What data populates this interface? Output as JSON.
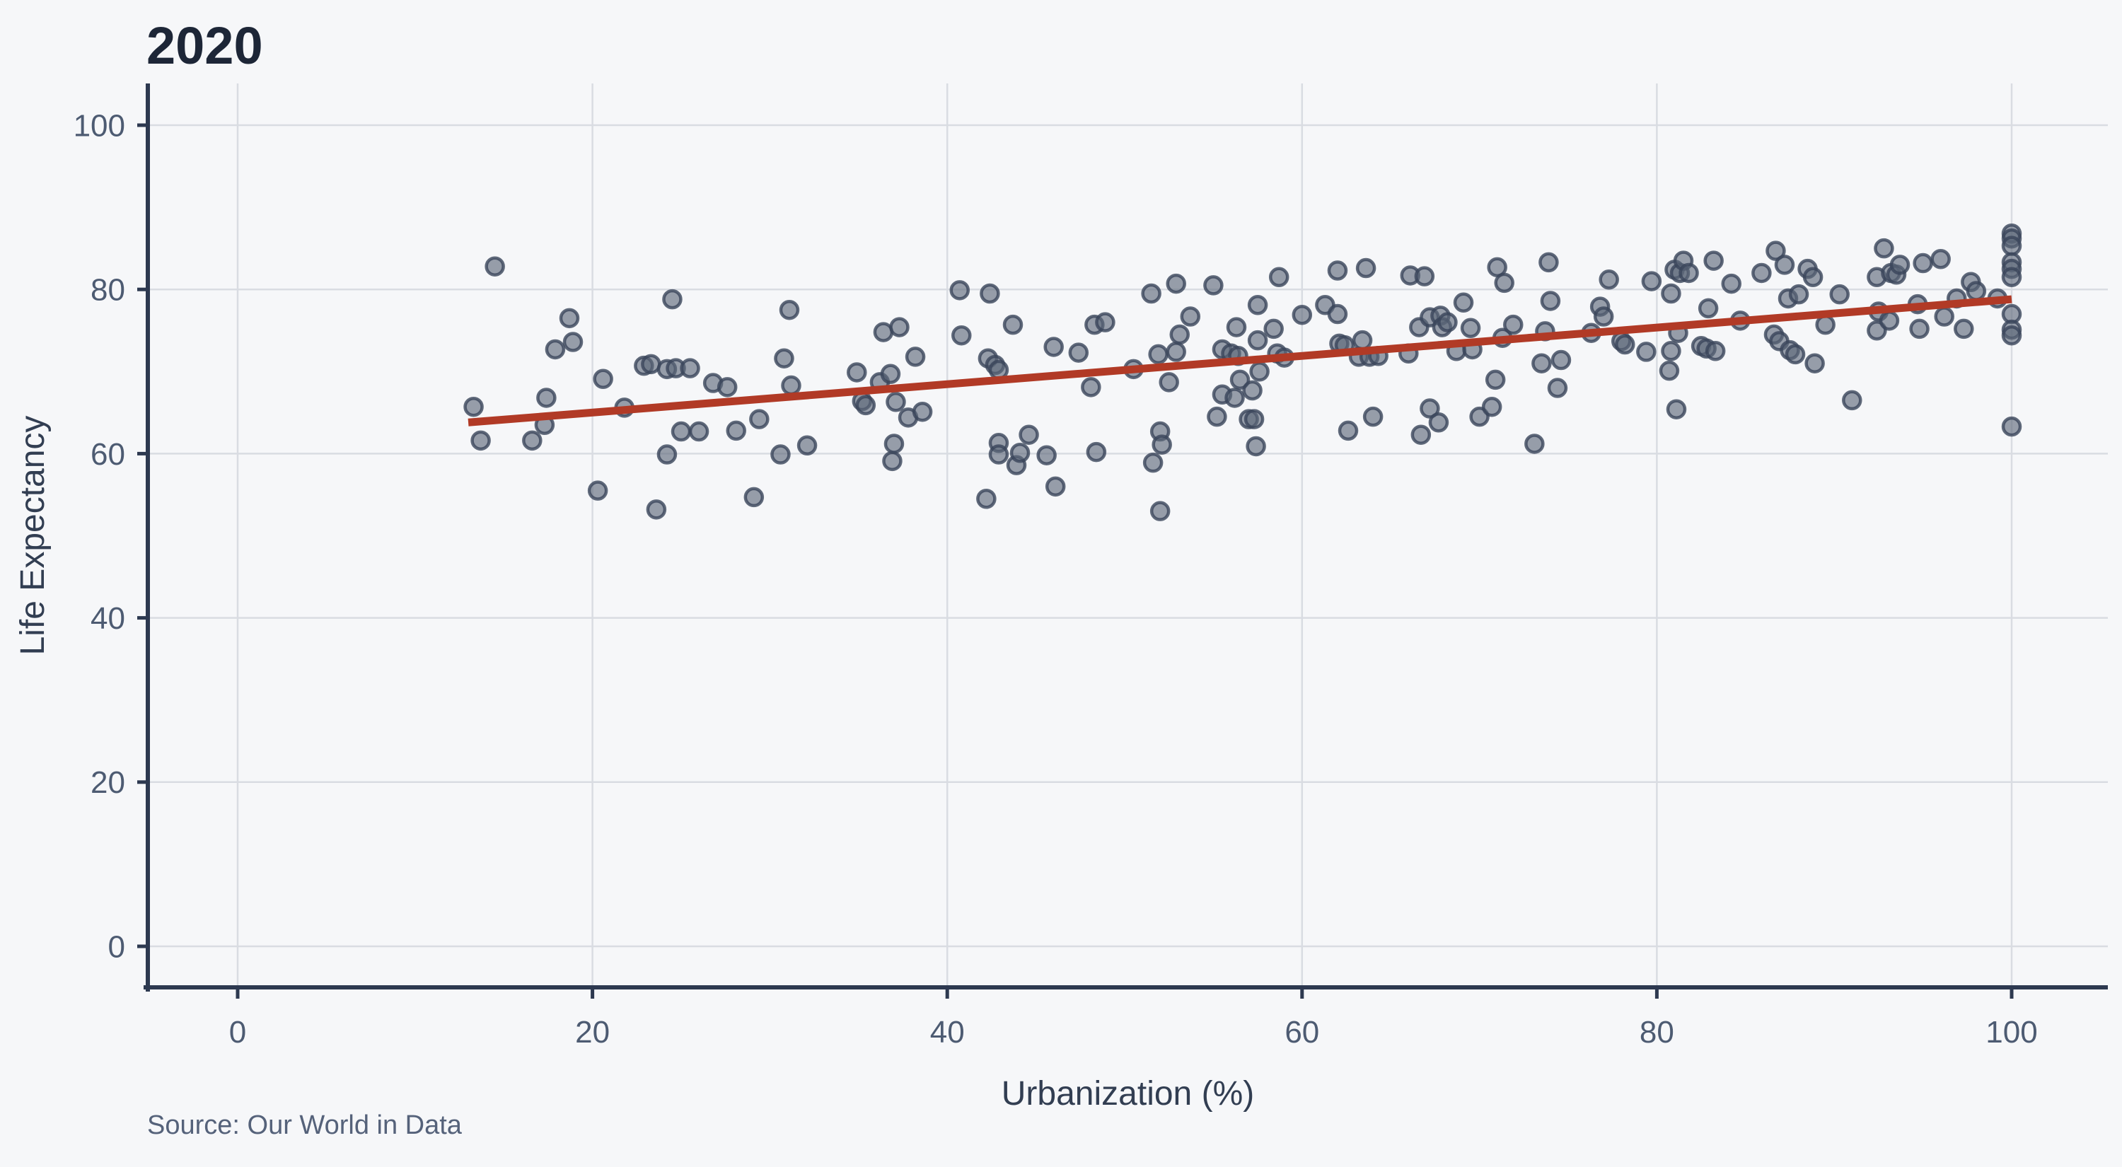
{
  "title": "2020",
  "source": "Source: Our World in Data",
  "chart_data": {
    "type": "scatter",
    "title": "2020",
    "xlabel": "Urbanization (%)",
    "ylabel": "Life Expectancy",
    "x_ticks": [
      0,
      20,
      40,
      60,
      80,
      100
    ],
    "y_ticks": [
      0,
      20,
      40,
      60,
      80,
      100
    ],
    "xlim": [
      -5,
      105.5
    ],
    "ylim": [
      -5,
      105.2
    ],
    "grid": true,
    "legend": "none",
    "colors": {
      "background": "#f6f7f9",
      "gridline": "#d9dce2",
      "spine": "#2d3950",
      "tick_label": "#4d5b72",
      "axis_label": "#323e52",
      "title": "#1d2637",
      "source": "#55627a",
      "point_fill": "#5a6678",
      "point_stroke": "#39455a",
      "trend": "#b13a26"
    },
    "trend_line": {
      "x1": 13,
      "y1": 63.8,
      "x2": 100,
      "y2": 78.8
    },
    "points": [
      [
        13.3,
        65.7
      ],
      [
        13.7,
        61.6
      ],
      [
        14.5,
        82.8
      ],
      [
        16.6,
        61.6
      ],
      [
        17.3,
        63.5
      ],
      [
        17.4,
        66.8
      ],
      [
        17.9,
        72.7
      ],
      [
        18.7,
        76.5
      ],
      [
        18.9,
        73.6
      ],
      [
        20.3,
        55.5
      ],
      [
        20.6,
        69.1
      ],
      [
        21.8,
        65.6
      ],
      [
        22.9,
        70.7
      ],
      [
        23.3,
        70.9
      ],
      [
        23.6,
        53.2
      ],
      [
        24.2,
        70.3
      ],
      [
        24.2,
        59.9
      ],
      [
        24.5,
        78.8
      ],
      [
        24.7,
        70.4
      ],
      [
        25.0,
        62.7
      ],
      [
        25.5,
        70.4
      ],
      [
        26.0,
        62.7
      ],
      [
        26.8,
        68.6
      ],
      [
        27.6,
        68.1
      ],
      [
        28.1,
        62.8
      ],
      [
        29.1,
        54.7
      ],
      [
        29.4,
        64.2
      ],
      [
        30.6,
        59.9
      ],
      [
        30.8,
        71.6
      ],
      [
        31.1,
        77.5
      ],
      [
        31.2,
        68.3
      ],
      [
        32.1,
        61.0
      ],
      [
        34.9,
        69.9
      ],
      [
        35.2,
        66.4
      ],
      [
        35.4,
        65.9
      ],
      [
        36.2,
        68.7
      ],
      [
        36.4,
        74.8
      ],
      [
        36.8,
        69.7
      ],
      [
        36.9,
        59.1
      ],
      [
        37.0,
        61.2
      ],
      [
        37.1,
        66.3
      ],
      [
        37.3,
        75.4
      ],
      [
        37.8,
        64.4
      ],
      [
        38.2,
        71.8
      ],
      [
        38.6,
        65.1
      ],
      [
        40.7,
        79.9
      ],
      [
        40.8,
        74.4
      ],
      [
        42.2,
        54.5
      ],
      [
        42.3,
        71.6
      ],
      [
        42.4,
        79.5
      ],
      [
        42.7,
        70.8
      ],
      [
        42.9,
        70.2
      ],
      [
        42.9,
        61.3
      ],
      [
        42.9,
        59.9
      ],
      [
        43.7,
        75.7
      ],
      [
        43.9,
        58.6
      ],
      [
        44.1,
        60.1
      ],
      [
        44.6,
        62.3
      ],
      [
        45.6,
        59.8
      ],
      [
        46.0,
        73.0
      ],
      [
        46.1,
        56.0
      ],
      [
        47.4,
        72.3
      ],
      [
        48.1,
        68.1
      ],
      [
        48.3,
        75.7
      ],
      [
        48.4,
        60.2
      ],
      [
        48.9,
        76.0
      ],
      [
        50.5,
        70.3
      ],
      [
        51.5,
        79.5
      ],
      [
        51.6,
        58.9
      ],
      [
        51.9,
        72.1
      ],
      [
        52.0,
        62.7
      ],
      [
        52.0,
        53.0
      ],
      [
        52.1,
        61.1
      ],
      [
        52.5,
        68.7
      ],
      [
        52.9,
        80.7
      ],
      [
        52.9,
        72.4
      ],
      [
        53.1,
        74.5
      ],
      [
        53.7,
        76.7
      ],
      [
        55.0,
        80.5
      ],
      [
        55.2,
        64.5
      ],
      [
        55.5,
        72.7
      ],
      [
        55.5,
        67.2
      ],
      [
        56.0,
        72.2
      ],
      [
        56.2,
        66.8
      ],
      [
        56.3,
        75.4
      ],
      [
        56.4,
        71.9
      ],
      [
        56.5,
        69.0
      ],
      [
        57.0,
        64.2
      ],
      [
        57.2,
        67.7
      ],
      [
        57.3,
        64.2
      ],
      [
        57.4,
        60.9
      ],
      [
        57.5,
        78.1
      ],
      [
        57.5,
        73.8
      ],
      [
        57.6,
        70.0
      ],
      [
        58.4,
        75.2
      ],
      [
        58.6,
        72.2
      ],
      [
        58.7,
        81.5
      ],
      [
        59.0,
        71.7
      ],
      [
        60.0,
        76.9
      ],
      [
        61.3,
        78.1
      ],
      [
        62.0,
        82.3
      ],
      [
        62.0,
        77.0
      ],
      [
        62.1,
        73.4
      ],
      [
        62.4,
        73.2
      ],
      [
        62.6,
        62.8
      ],
      [
        63.2,
        71.8
      ],
      [
        63.4,
        73.8
      ],
      [
        63.6,
        82.6
      ],
      [
        63.8,
        71.8
      ],
      [
        64.0,
        64.5
      ],
      [
        64.3,
        71.9
      ],
      [
        66.0,
        72.2
      ],
      [
        66.1,
        81.7
      ],
      [
        66.6,
        75.4
      ],
      [
        66.7,
        62.3
      ],
      [
        66.9,
        81.6
      ],
      [
        67.2,
        76.6
      ],
      [
        67.2,
        65.5
      ],
      [
        67.7,
        63.8
      ],
      [
        67.8,
        76.8
      ],
      [
        67.9,
        75.4
      ],
      [
        68.2,
        76.0
      ],
      [
        68.7,
        72.5
      ],
      [
        69.1,
        78.4
      ],
      [
        69.5,
        75.3
      ],
      [
        69.6,
        72.7
      ],
      [
        70.0,
        64.5
      ],
      [
        70.7,
        65.7
      ],
      [
        70.9,
        69.0
      ],
      [
        71.0,
        82.7
      ],
      [
        71.3,
        74.1
      ],
      [
        71.4,
        80.8
      ],
      [
        71.9,
        75.7
      ],
      [
        73.1,
        61.2
      ],
      [
        73.5,
        71.0
      ],
      [
        73.7,
        74.9
      ],
      [
        73.9,
        83.3
      ],
      [
        74.0,
        78.6
      ],
      [
        74.4,
        68.0
      ],
      [
        74.6,
        71.4
      ],
      [
        76.3,
        74.7
      ],
      [
        76.8,
        77.9
      ],
      [
        77.0,
        76.7
      ],
      [
        77.3,
        81.2
      ],
      [
        78.0,
        73.7
      ],
      [
        78.2,
        73.3
      ],
      [
        79.4,
        72.4
      ],
      [
        79.7,
        81.0
      ],
      [
        80.7,
        70.1
      ],
      [
        80.8,
        79.5
      ],
      [
        80.8,
        72.5
      ],
      [
        81.0,
        82.4
      ],
      [
        81.1,
        65.4
      ],
      [
        81.2,
        74.7
      ],
      [
        81.3,
        82.0
      ],
      [
        81.5,
        83.5
      ],
      [
        81.8,
        82.0
      ],
      [
        82.5,
        73.1
      ],
      [
        82.8,
        72.8
      ],
      [
        82.9,
        77.7
      ],
      [
        83.2,
        83.5
      ],
      [
        83.3,
        72.5
      ],
      [
        84.2,
        80.7
      ],
      [
        84.7,
        76.2
      ],
      [
        85.9,
        82.0
      ],
      [
        86.6,
        74.5
      ],
      [
        86.7,
        84.7
      ],
      [
        86.9,
        73.7
      ],
      [
        87.2,
        83.0
      ],
      [
        87.4,
        78.9
      ],
      [
        87.5,
        72.6
      ],
      [
        87.8,
        72.1
      ],
      [
        88.0,
        79.4
      ],
      [
        88.5,
        82.5
      ],
      [
        88.8,
        81.5
      ],
      [
        88.9,
        71.0
      ],
      [
        89.5,
        75.7
      ],
      [
        90.3,
        79.4
      ],
      [
        91.0,
        66.5
      ],
      [
        92.4,
        81.5
      ],
      [
        92.4,
        75.0
      ],
      [
        92.5,
        77.3
      ],
      [
        92.8,
        85.0
      ],
      [
        93.1,
        76.2
      ],
      [
        93.2,
        82.0
      ],
      [
        93.5,
        81.8
      ],
      [
        93.7,
        83.0
      ],
      [
        94.7,
        78.2
      ],
      [
        94.8,
        75.2
      ],
      [
        95.0,
        83.2
      ],
      [
        96.0,
        83.7
      ],
      [
        96.2,
        76.7
      ],
      [
        96.9,
        78.9
      ],
      [
        97.3,
        75.2
      ],
      [
        97.7,
        80.9
      ],
      [
        98.0,
        79.8
      ],
      [
        99.2,
        78.9
      ],
      [
        100,
        86.8
      ],
      [
        100,
        86.2
      ],
      [
        100,
        85.3
      ],
      [
        100,
        83.3
      ],
      [
        100,
        82.5
      ],
      [
        100,
        81.5
      ],
      [
        100,
        77.0
      ],
      [
        100,
        75.1
      ],
      [
        100,
        74.4
      ],
      [
        100,
        63.3
      ]
    ]
  }
}
